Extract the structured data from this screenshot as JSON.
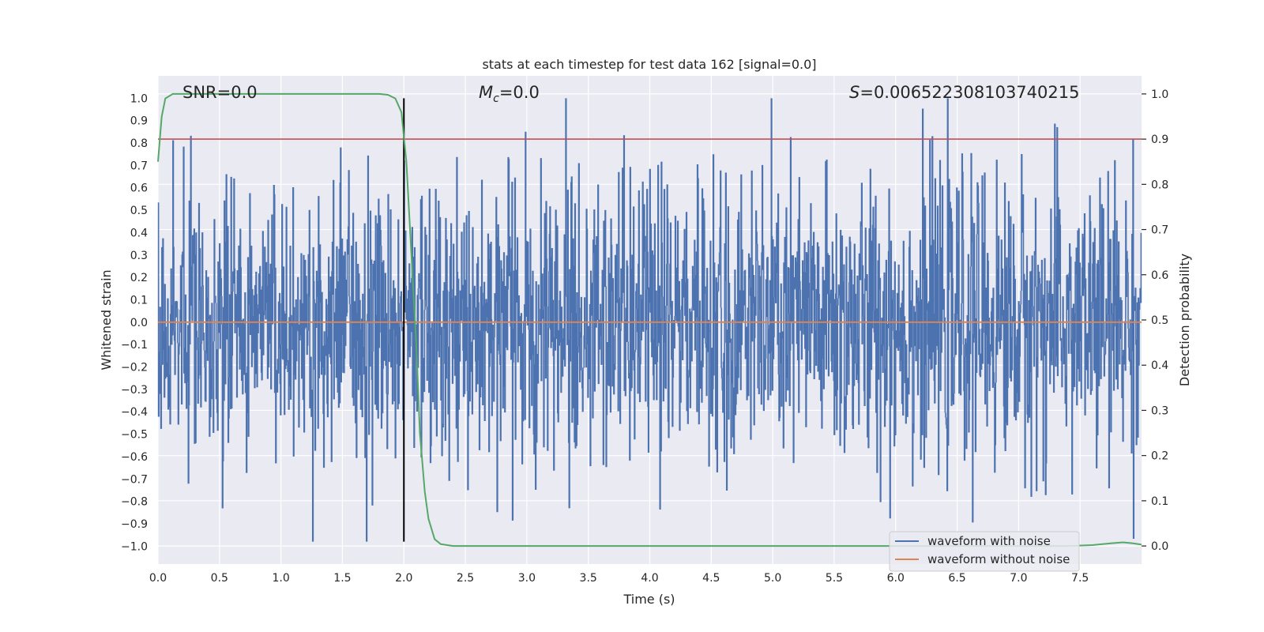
{
  "chart_data": {
    "type": "line",
    "title": "stats at each timestep for test data 162 [signal=0.0]",
    "xlabel": "Time (s)",
    "ylabel_left": "Whitened strain",
    "ylabel_right": "Detection probability",
    "xlim": [
      0.0,
      8.0
    ],
    "ylim_left": [
      -1.08,
      1.1
    ],
    "ylim_right": [
      -0.04,
      1.04
    ],
    "x_ticks": [
      0.0,
      0.5,
      1.0,
      1.5,
      2.0,
      2.5,
      3.0,
      3.5,
      4.0,
      4.5,
      5.0,
      5.5,
      6.0,
      6.5,
      7.0,
      7.5
    ],
    "x_tick_labels": [
      "0.0",
      "0.5",
      "1.0",
      "1.5",
      "2.0",
      "2.5",
      "3.0",
      "3.5",
      "4.0",
      "4.5",
      "5.0",
      "5.5",
      "6.0",
      "6.5",
      "7.0",
      "7.5"
    ],
    "y_ticks_left": [
      -1.0,
      -0.9,
      -0.8,
      -0.7,
      -0.6,
      -0.5,
      -0.4,
      -0.3,
      -0.2,
      -0.1,
      0.0,
      0.1,
      0.2,
      0.3,
      0.4,
      0.5,
      0.6,
      0.7,
      0.8,
      0.9,
      1.0
    ],
    "y_tick_labels_left": [
      "−1.0",
      "−0.9",
      "−0.8",
      "−0.7",
      "−0.6",
      "−0.5",
      "−0.4",
      "−0.3",
      "−0.2",
      "−0.1",
      "0.0",
      "0.1",
      "0.2",
      "0.3",
      "0.4",
      "0.5",
      "0.6",
      "0.7",
      "0.8",
      "0.9",
      "1.0"
    ],
    "y_ticks_right": [
      0.0,
      0.1,
      0.2,
      0.3,
      0.4,
      0.5,
      0.6,
      0.7,
      0.8,
      0.9,
      1.0
    ],
    "y_tick_labels_right": [
      "0.0",
      "0.1",
      "0.2",
      "0.3",
      "0.4",
      "0.5",
      "0.6",
      "0.7",
      "0.8",
      "0.9",
      "1.0"
    ],
    "annotations": {
      "snr": "SNR=0.0",
      "mc_symbol": "M",
      "mc_subscript": "c",
      "mc_value": "=0.0",
      "s_symbol": "S",
      "s_value": "=0.006522308103740215"
    },
    "threshold": {
      "value_right_axis": 0.9,
      "color": "#c44e52"
    },
    "marker_line": {
      "x": 2.0,
      "y_range_left": [
        -0.98,
        1.0
      ],
      "color": "#000000"
    },
    "series": [
      {
        "name": "waveform with noise",
        "color": "#4c72b0",
        "axis": "left",
        "description_stats": {
          "sample_rate_hz": 256,
          "amplitude_std": 0.32,
          "approx_min": -0.98,
          "approx_max": 1.0
        }
      },
      {
        "name": "waveform without noise",
        "color": "#dd8452",
        "axis": "left",
        "x": [
          0.0,
          8.0
        ],
        "y": [
          0.0,
          0.0
        ]
      },
      {
        "name": "detection probability",
        "color": "#55a868",
        "axis": "right",
        "x": [
          0.0,
          0.03,
          0.06,
          0.12,
          0.2,
          0.5,
          1.0,
          1.5,
          1.7,
          1.8,
          1.87,
          1.93,
          1.98,
          2.02,
          2.06,
          2.1,
          2.13,
          2.17,
          2.2,
          2.25,
          2.3,
          2.4,
          3.0,
          4.0,
          5.0,
          6.0,
          7.0,
          7.4,
          7.6,
          7.75,
          7.85,
          7.93,
          8.0
        ],
        "y": [
          0.85,
          0.95,
          0.99,
          1.0,
          1.0,
          1.0,
          1.0,
          1.0,
          1.0,
          1.0,
          0.998,
          0.99,
          0.96,
          0.85,
          0.65,
          0.45,
          0.25,
          0.12,
          0.06,
          0.015,
          0.004,
          0.0,
          0.0,
          0.0,
          0.0,
          0.0,
          0.0,
          0.0,
          0.002,
          0.006,
          0.008,
          0.006,
          0.003
        ]
      }
    ],
    "legend": {
      "placement": "bottom-right",
      "entries": [
        "waveform with noise",
        "waveform without noise"
      ]
    },
    "style": {
      "background": "#eaeaf2",
      "grid": "#ffffff",
      "grid_on": true
    }
  }
}
